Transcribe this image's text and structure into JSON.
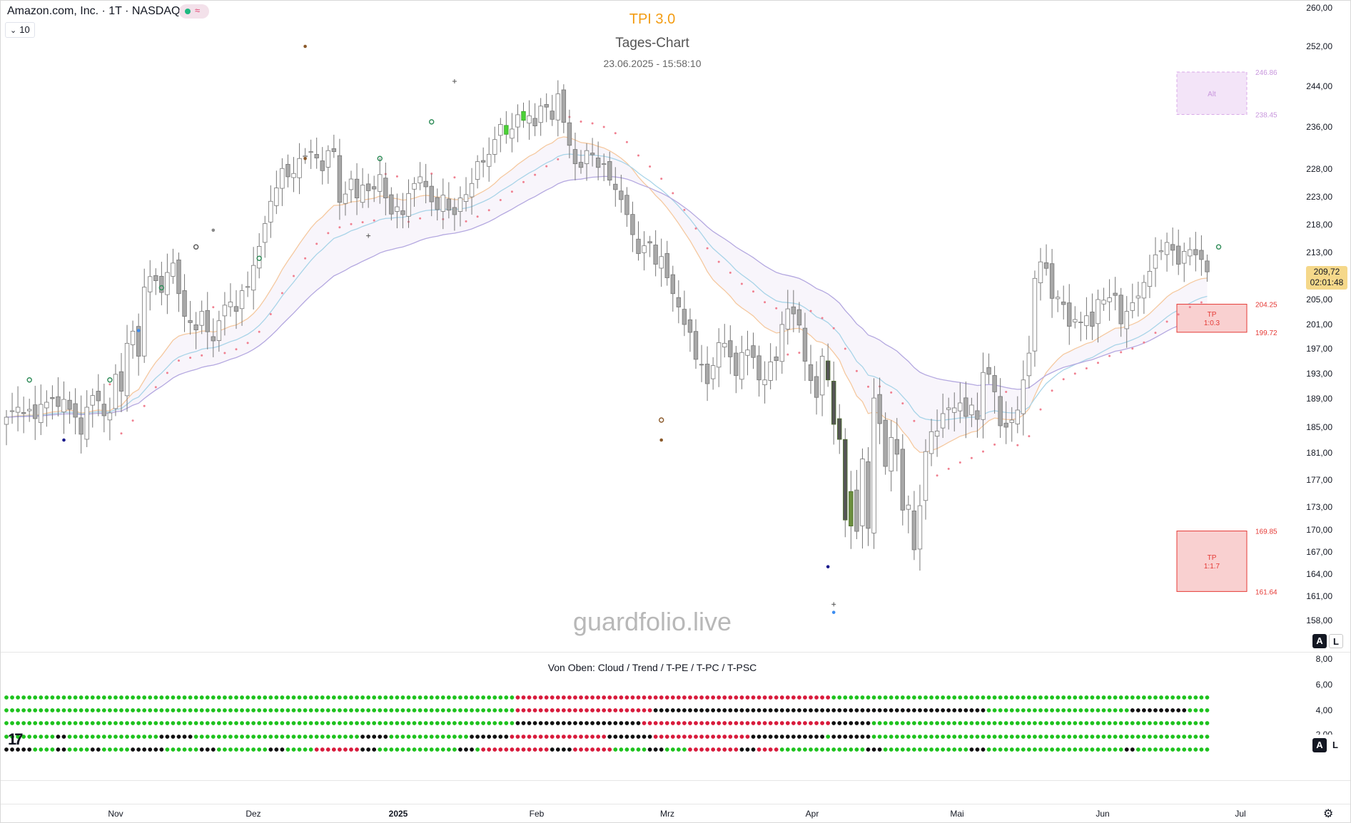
{
  "header": {
    "symbol_title": "Amazon.com, Inc. · 1T · NASDAQ",
    "interval_value": "10",
    "status_icons": [
      "green-dot-icon",
      "wave-icon"
    ]
  },
  "overlay": {
    "indicator_title": "TPI 3.0",
    "chart_subtitle": "Tages-Chart",
    "timestamp": "23.06.2025 - 15:58:10",
    "watermark": "guardfolio.live"
  },
  "price_axis": {
    "labels": [
      "260,00",
      "252,00",
      "244,00",
      "236,00",
      "228,00",
      "223,00",
      "218,00",
      "213,00",
      "205,00",
      "201,00",
      "197,00",
      "193,00",
      "189,00",
      "185,00",
      "181,00",
      "177,00",
      "173,00",
      "170,00",
      "167,00",
      "164,00",
      "161,00",
      "158,00"
    ],
    "last_price": "209,72",
    "countdown": "02:01:48",
    "buttons": {
      "auto": "A",
      "log": "L"
    }
  },
  "zones": [
    {
      "kind": "alt",
      "label": "Alt",
      "top_price": "246.86",
      "bottom_price": "238.45",
      "top": 246.86,
      "bottom": 238.45
    },
    {
      "kind": "tp",
      "label": "TP",
      "ratio": "1:0.3",
      "top_price": "204.25",
      "bottom_price": "199.72",
      "top": 204.25,
      "bottom": 199.72
    },
    {
      "kind": "tp",
      "label": "TP",
      "ratio": "1:1.7",
      "top_price": "169.85",
      "bottom_price": "161.64",
      "top": 169.85,
      "bottom": 161.64
    }
  ],
  "oscillator": {
    "title": "Von Oben: Cloud / Trend / T-PE / T-PC / T-PSC",
    "axis_labels": [
      "8,00",
      "6,00",
      "4,00",
      "2,00"
    ],
    "buttons": {
      "auto": "A",
      "log": "L"
    }
  },
  "time_axis": {
    "labels": [
      "Nov",
      "Dez",
      "2025",
      "Feb",
      "Mrz",
      "Apr",
      "Mai",
      "Jun",
      "Jul"
    ]
  },
  "colors": {
    "bull_candle": "#ffffff",
    "bear_candle": "#a8a8a8",
    "highlight_green": "#4cd137",
    "dark_green": "#6b8e3d",
    "trend_dots": "#f08090",
    "ema_orange": "#f5c9a0",
    "ema_blue": "#a8d4e8",
    "ema_purple": "#b4a8e0",
    "osc_green": "#1ec21e",
    "osc_red": "#d81b3c",
    "osc_black": "#111111",
    "title_orange": "#f39c12"
  },
  "chart_data": {
    "type": "candlestick",
    "title": "TPI 3.0",
    "subtitle": "Tages-Chart",
    "ylim": [
      157,
      260
    ],
    "x_ticks": [
      "Nov",
      "Dez",
      "2025",
      "Feb",
      "Mrz",
      "Apr",
      "Mai",
      "Jun",
      "Jul"
    ],
    "closes": [
      186.4,
      187.3,
      187.8,
      186.9,
      187.5,
      186.2,
      188.2,
      188.5,
      189.0,
      187.9,
      188.9,
      187.5,
      186.4,
      183.9,
      187.8,
      189.5,
      188.7,
      186.6,
      187.0,
      192.9,
      190.2,
      197.9,
      199.9,
      195.8,
      207.1,
      208.9,
      208.2,
      206.2,
      209.6,
      211.2,
      206.0,
      202.3,
      201.3,
      200.1,
      203.1,
      199.8,
      198.3,
      201.6,
      204.1,
      204.6,
      203.1,
      206.5,
      207.2,
      210.8,
      214.1,
      218.2,
      222.2,
      224.6,
      228.1,
      226.6,
      227.2,
      230.0,
      230.5,
      231.3,
      230.1,
      227.7,
      231.5,
      231.3,
      222.0,
      223.5,
      226.2,
      222.8,
      225.1,
      224.1,
      224.4,
      227.0,
      222.8,
      219.9,
      221.2,
      219.8,
      223.6,
      225.4,
      226.6,
      224.8,
      222.1,
      220.7,
      223.3,
      220.6,
      219.8,
      222.8,
      223.4,
      225.4,
      229.4,
      229.3,
      230.8,
      233.6,
      236.5,
      234.6,
      235.6,
      238.4,
      237.3,
      238.2,
      236.2,
      240.1,
      239.9,
      237.5,
      242.5,
      236.9,
      232.5,
      229.0,
      228.3,
      231.5,
      230.7,
      228.3,
      229.0,
      226.0,
      224.3,
      222.5,
      219.8,
      216.2,
      212.8,
      214.2,
      214.7,
      211.0,
      212.3,
      208.7,
      206.0,
      203.8,
      201.0,
      199.7,
      195.3,
      194.5,
      191.4,
      194.3,
      198.0,
      197.9,
      195.7,
      192.7,
      196.4,
      196.8,
      195.6,
      192.0,
      192.0,
      194.9,
      195.1,
      201.0,
      203.5,
      202.7,
      200.9,
      195.0,
      191.9,
      189.2,
      195.8,
      192.0,
      185.4,
      183.1,
      171.3,
      175.3,
      169.8,
      180.1,
      170.2,
      189.1,
      185.5,
      179.0,
      183.4,
      180.8,
      172.6,
      173.3,
      167.3,
      173.2,
      181.2,
      184.3,
      184.4,
      186.9,
      187.7,
      187.7,
      188.4,
      186.5,
      188.1,
      186.1,
      193.2,
      192.9,
      190.1,
      185.2,
      185.0,
      186.0,
      187.4,
      192.0,
      196.3,
      208.6,
      211.4,
      210.3,
      205.2,
      205.4,
      204.2,
      200.7,
      201.8,
      201.4,
      202.4,
      200.7,
      205.0,
      204.9,
      205.3,
      205.7,
      201.1,
      203.1,
      204.5,
      205.6,
      207.9,
      209.8,
      212.6,
      213.3,
      214.8,
      213.4,
      211.0,
      213.2,
      213.5,
      212.6,
      211.8,
      209.7
    ]
  }
}
